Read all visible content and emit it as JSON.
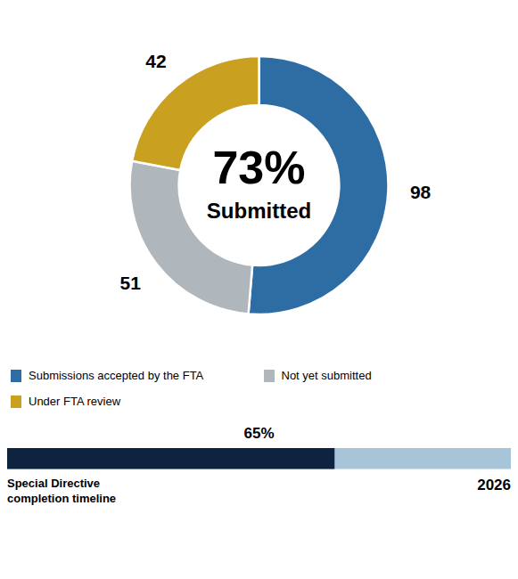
{
  "chart_data": [
    {
      "type": "pie",
      "categories": [
        "Submissions accepted by the FTA",
        "Not yet submitted",
        "Under FTA review"
      ],
      "values": [
        98,
        51,
        42
      ],
      "colors": [
        "#2E6DA4",
        "#B0B7BC",
        "#C9A020"
      ],
      "data_labels": true,
      "annotations": [
        "73%",
        "Submitted"
      ]
    },
    {
      "type": "bar",
      "orientation": "horizontal",
      "xlim": [
        0,
        100
      ],
      "tick_labels": false,
      "series": [
        {
          "color": "#A8C4D8",
          "values": [
            100
          ]
        },
        {
          "color": "#0D2340",
          "values": [
            65
          ]
        }
      ],
      "annotations": [
        "65%",
        "Special Directive\ncompletion timeline",
        "2026"
      ]
    }
  ]
}
